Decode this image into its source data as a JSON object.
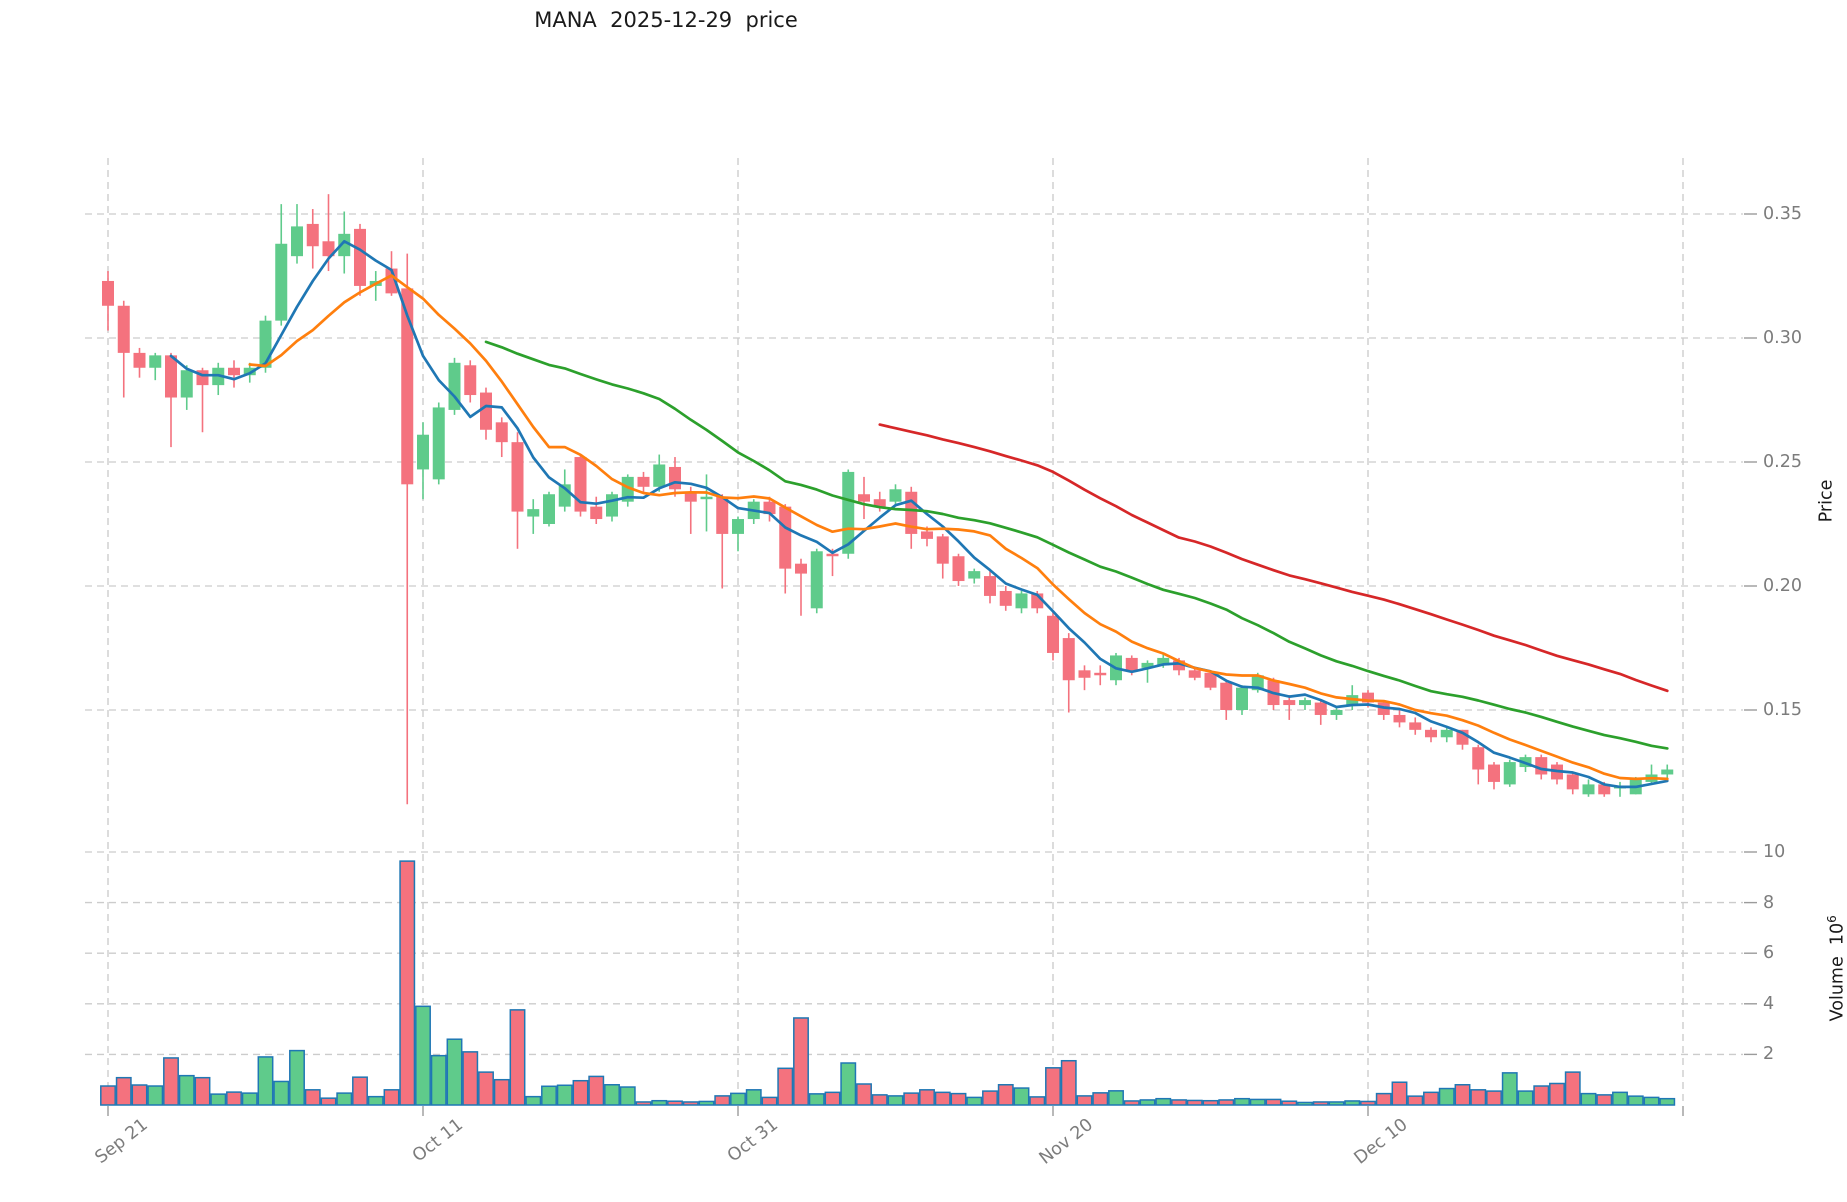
{
  "title": "MANA  2025-12-29  price",
  "axes": {
    "price_label": "Price",
    "volume_label": "Volume",
    "volume_scale_base": "10",
    "volume_scale_exp": "6"
  },
  "chart_data": {
    "type": "candlestick",
    "symbol": "MANA",
    "title": "MANA  2025-12-29  price",
    "legend_position": "none",
    "grid": true,
    "columns": [
      "date",
      "open",
      "high",
      "low",
      "close",
      "volume_millions"
    ],
    "rows": [
      [
        "2025-09-21",
        0.323,
        0.327,
        0.303,
        0.313,
        0.75
      ],
      [
        "2025-09-22",
        0.313,
        0.315,
        0.276,
        0.294,
        1.08
      ],
      [
        "2025-09-23",
        0.294,
        0.296,
        0.284,
        0.288,
        0.79
      ],
      [
        "2025-09-24",
        0.288,
        0.294,
        0.283,
        0.293,
        0.75
      ],
      [
        "2025-09-25",
        0.293,
        0.294,
        0.256,
        0.276,
        1.86
      ],
      [
        "2025-09-26",
        0.276,
        0.289,
        0.271,
        0.287,
        1.16
      ],
      [
        "2025-09-27",
        0.287,
        0.288,
        0.262,
        0.281,
        1.08
      ],
      [
        "2025-09-28",
        0.281,
        0.29,
        0.277,
        0.288,
        0.43
      ],
      [
        "2025-09-29",
        0.288,
        0.291,
        0.28,
        0.285,
        0.51
      ],
      [
        "2025-09-30",
        0.285,
        0.29,
        0.282,
        0.288,
        0.47
      ],
      [
        "2025-10-01",
        0.288,
        0.309,
        0.286,
        0.307,
        1.9
      ],
      [
        "2025-10-02",
        0.307,
        0.354,
        0.305,
        0.338,
        0.93
      ],
      [
        "2025-10-03",
        0.333,
        0.354,
        0.33,
        0.345,
        2.15
      ],
      [
        "2025-10-04",
        0.346,
        0.352,
        0.328,
        0.337,
        0.6
      ],
      [
        "2025-10-05",
        0.339,
        0.358,
        0.327,
        0.333,
        0.27
      ],
      [
        "2025-10-06",
        0.333,
        0.351,
        0.326,
        0.342,
        0.47
      ],
      [
        "2025-10-07",
        0.344,
        0.346,
        0.317,
        0.321,
        1.1
      ],
      [
        "2025-10-08",
        0.321,
        0.327,
        0.315,
        0.323,
        0.33
      ],
      [
        "2025-10-09",
        0.328,
        0.335,
        0.317,
        0.318,
        0.6
      ],
      [
        "2025-10-10",
        0.32,
        0.334,
        0.112,
        0.241,
        9.64
      ],
      [
        "2025-10-11",
        0.247,
        0.266,
        0.235,
        0.261,
        3.9
      ],
      [
        "2025-10-12",
        0.243,
        0.274,
        0.241,
        0.272,
        1.95
      ],
      [
        "2025-10-13",
        0.271,
        0.292,
        0.269,
        0.29,
        2.6
      ],
      [
        "2025-10-14",
        0.289,
        0.291,
        0.274,
        0.277,
        2.1
      ],
      [
        "2025-10-15",
        0.278,
        0.28,
        0.259,
        0.263,
        1.3
      ],
      [
        "2025-10-16",
        0.266,
        0.268,
        0.252,
        0.258,
        1.0
      ],
      [
        "2025-10-17",
        0.258,
        0.262,
        0.215,
        0.23,
        3.76
      ],
      [
        "2025-10-18",
        0.228,
        0.235,
        0.221,
        0.231,
        0.33
      ],
      [
        "2025-10-19",
        0.225,
        0.238,
        0.224,
        0.237,
        0.74
      ],
      [
        "2025-10-20",
        0.232,
        0.247,
        0.23,
        0.241,
        0.78
      ],
      [
        "2025-10-21",
        0.252,
        0.253,
        0.228,
        0.23,
        0.96
      ],
      [
        "2025-10-22",
        0.232,
        0.236,
        0.225,
        0.227,
        1.13
      ],
      [
        "2025-10-23",
        0.228,
        0.238,
        0.226,
        0.237,
        0.8
      ],
      [
        "2025-10-24",
        0.234,
        0.245,
        0.232,
        0.244,
        0.71
      ],
      [
        "2025-10-25",
        0.244,
        0.246,
        0.238,
        0.24,
        0.12
      ],
      [
        "2025-10-26",
        0.24,
        0.253,
        0.238,
        0.249,
        0.17
      ],
      [
        "2025-10-27",
        0.248,
        0.252,
        0.236,
        0.239,
        0.15
      ],
      [
        "2025-10-28",
        0.238,
        0.24,
        0.221,
        0.234,
        0.12
      ],
      [
        "2025-10-29",
        0.235,
        0.245,
        0.222,
        0.236,
        0.14
      ],
      [
        "2025-10-30",
        0.236,
        0.237,
        0.199,
        0.221,
        0.36
      ],
      [
        "2025-10-31",
        0.221,
        0.228,
        0.214,
        0.227,
        0.46
      ],
      [
        "2025-11-01",
        0.227,
        0.235,
        0.225,
        0.234,
        0.6
      ],
      [
        "2025-11-02",
        0.234,
        0.236,
        0.226,
        0.229,
        0.3
      ],
      [
        "2025-11-03",
        0.232,
        0.233,
        0.197,
        0.207,
        1.45
      ],
      [
        "2025-11-04",
        0.209,
        0.211,
        0.188,
        0.205,
        3.44
      ],
      [
        "2025-11-05",
        0.191,
        0.215,
        0.189,
        0.214,
        0.44
      ],
      [
        "2025-11-06",
        0.213,
        0.215,
        0.204,
        0.212,
        0.5
      ],
      [
        "2025-11-07",
        0.213,
        0.247,
        0.211,
        0.246,
        1.66
      ],
      [
        "2025-11-08",
        0.237,
        0.244,
        0.227,
        0.234,
        0.83
      ],
      [
        "2025-11-09",
        0.235,
        0.238,
        0.23,
        0.232,
        0.4
      ],
      [
        "2025-11-10",
        0.234,
        0.241,
        0.232,
        0.239,
        0.36
      ],
      [
        "2025-11-11",
        0.238,
        0.24,
        0.215,
        0.221,
        0.47
      ],
      [
        "2025-11-12",
        0.222,
        0.224,
        0.216,
        0.219,
        0.6
      ],
      [
        "2025-11-13",
        0.22,
        0.221,
        0.203,
        0.209,
        0.5
      ],
      [
        "2025-11-14",
        0.212,
        0.213,
        0.2,
        0.202,
        0.45
      ],
      [
        "2025-11-15",
        0.203,
        0.207,
        0.201,
        0.206,
        0.3
      ],
      [
        "2025-11-16",
        0.204,
        0.206,
        0.193,
        0.196,
        0.55
      ],
      [
        "2025-11-17",
        0.198,
        0.2,
        0.19,
        0.192,
        0.8
      ],
      [
        "2025-11-18",
        0.191,
        0.198,
        0.189,
        0.197,
        0.67
      ],
      [
        "2025-11-19",
        0.197,
        0.198,
        0.189,
        0.191,
        0.32
      ],
      [
        "2025-11-20",
        0.188,
        0.19,
        0.17,
        0.173,
        1.47
      ],
      [
        "2025-11-21",
        0.179,
        0.181,
        0.149,
        0.162,
        1.75
      ],
      [
        "2025-11-22",
        0.166,
        0.168,
        0.158,
        0.163,
        0.36
      ],
      [
        "2025-11-23",
        0.165,
        0.168,
        0.16,
        0.164,
        0.48
      ],
      [
        "2025-11-24",
        0.162,
        0.173,
        0.16,
        0.172,
        0.56
      ],
      [
        "2025-11-25",
        0.171,
        0.172,
        0.164,
        0.166,
        0.16
      ],
      [
        "2025-11-26",
        0.167,
        0.17,
        0.161,
        0.169,
        0.2
      ],
      [
        "2025-11-27",
        0.168,
        0.173,
        0.167,
        0.171,
        0.25
      ],
      [
        "2025-11-28",
        0.17,
        0.171,
        0.164,
        0.166,
        0.2
      ],
      [
        "2025-11-29",
        0.166,
        0.167,
        0.162,
        0.163,
        0.18
      ],
      [
        "2025-11-30",
        0.165,
        0.166,
        0.158,
        0.159,
        0.17
      ],
      [
        "2025-12-01",
        0.161,
        0.162,
        0.146,
        0.15,
        0.2
      ],
      [
        "2025-12-02",
        0.15,
        0.16,
        0.148,
        0.159,
        0.25
      ],
      [
        "2025-12-03",
        0.158,
        0.165,
        0.157,
        0.164,
        0.22
      ],
      [
        "2025-12-04",
        0.162,
        0.163,
        0.15,
        0.152,
        0.22
      ],
      [
        "2025-12-05",
        0.154,
        0.156,
        0.146,
        0.152,
        0.15
      ],
      [
        "2025-12-06",
        0.152,
        0.155,
        0.15,
        0.154,
        0.1
      ],
      [
        "2025-12-07",
        0.153,
        0.154,
        0.144,
        0.148,
        0.12
      ],
      [
        "2025-12-08",
        0.148,
        0.151,
        0.146,
        0.15,
        0.12
      ],
      [
        "2025-12-09",
        0.152,
        0.16,
        0.15,
        0.156,
        0.16
      ],
      [
        "2025-12-10",
        0.157,
        0.158,
        0.151,
        0.153,
        0.14
      ],
      [
        "2025-12-11",
        0.153,
        0.154,
        0.146,
        0.148,
        0.45
      ],
      [
        "2025-12-12",
        0.148,
        0.15,
        0.143,
        0.145,
        0.9
      ],
      [
        "2025-12-13",
        0.145,
        0.147,
        0.14,
        0.142,
        0.35
      ],
      [
        "2025-12-14",
        0.142,
        0.143,
        0.137,
        0.139,
        0.5
      ],
      [
        "2025-12-15",
        0.139,
        0.143,
        0.137,
        0.142,
        0.65
      ],
      [
        "2025-12-16",
        0.142,
        0.142,
        0.134,
        0.136,
        0.8
      ],
      [
        "2025-12-17",
        0.135,
        0.136,
        0.12,
        0.126,
        0.6
      ],
      [
        "2025-12-18",
        0.128,
        0.129,
        0.118,
        0.121,
        0.55
      ],
      [
        "2025-12-19",
        0.12,
        0.13,
        0.119,
        0.129,
        1.27
      ],
      [
        "2025-12-20",
        0.127,
        0.132,
        0.125,
        0.131,
        0.55
      ],
      [
        "2025-12-21",
        0.131,
        0.132,
        0.122,
        0.124,
        0.75
      ],
      [
        "2025-12-22",
        0.128,
        0.129,
        0.12,
        0.122,
        0.85
      ],
      [
        "2025-12-23",
        0.124,
        0.125,
        0.116,
        0.118,
        1.3
      ],
      [
        "2025-12-24",
        0.116,
        0.122,
        0.115,
        0.12,
        0.45
      ],
      [
        "2025-12-25",
        0.12,
        0.121,
        0.115,
        0.116,
        0.4
      ],
      [
        "2025-12-26",
        0.119,
        0.121,
        0.115,
        0.119,
        0.5
      ],
      [
        "2025-12-27",
        0.116,
        0.123,
        0.116,
        0.122,
        0.35
      ],
      [
        "2025-12-28",
        0.121,
        0.128,
        0.12,
        0.124,
        0.3
      ],
      [
        "2025-12-29",
        0.124,
        0.128,
        0.122,
        0.126,
        0.25
      ]
    ],
    "moving_averages": [
      {
        "window": 5,
        "color": "#1f77b4"
      },
      {
        "window": 10,
        "color": "#ff7f0e"
      },
      {
        "window": 25,
        "color": "#2ca02c"
      },
      {
        "window": 50,
        "color": "#d62728"
      }
    ],
    "price_axis": {
      "label": "Price",
      "side": "right",
      "ticks": [
        {
          "value": 0.15,
          "label": "0.15"
        },
        {
          "value": 0.2,
          "label": "0.20"
        },
        {
          "value": 0.25,
          "label": "0.25"
        },
        {
          "value": 0.3,
          "label": "0.30"
        },
        {
          "value": 0.35,
          "label": "0.35"
        }
      ],
      "range": [
        0.109,
        0.373
      ]
    },
    "volume_axis": {
      "label": "Volume 10^6",
      "side": "right",
      "unit": "millions",
      "ticks": [
        {
          "value": 2,
          "label": "2"
        },
        {
          "value": 4,
          "label": "4"
        },
        {
          "value": 6,
          "label": "6"
        },
        {
          "value": 8,
          "label": "8"
        },
        {
          "value": 10,
          "label": "10"
        }
      ],
      "range": [
        0,
        11.6
      ]
    },
    "x_axis": {
      "ticks": [
        {
          "index": 0,
          "label": "Sep 21"
        },
        {
          "index": 20,
          "label": "Oct 11"
        },
        {
          "index": 40,
          "label": "Oct 31"
        },
        {
          "index": 60,
          "label": "Nov 20"
        },
        {
          "index": 80,
          "label": "Dec 10"
        },
        {
          "index": 100,
          "label": ""
        }
      ]
    },
    "style": {
      "up_color": "#5fcb8b",
      "down_color": "#f4727e",
      "volume_edge_color": "#1f77b4",
      "grid_color": "#cccccc",
      "tick_text_color": "#7c7c7c",
      "title_color": "#1a1a1a",
      "background": "#ffffff"
    }
  }
}
